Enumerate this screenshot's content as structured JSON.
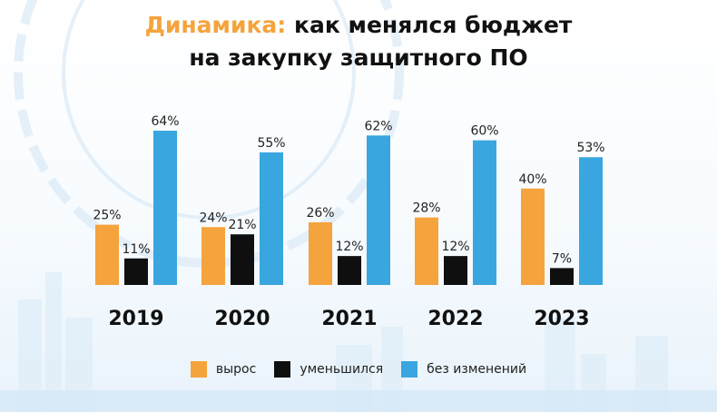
{
  "title": {
    "accent": "Динамика:",
    "line1_rest": "как менялся бюджет",
    "line2": "на закупку защитного ПО"
  },
  "colors": {
    "growth": "#f5a33d",
    "decrease": "#0f0f0f",
    "unchanged": "#3aa6e0",
    "title_accent": "#f5a33d"
  },
  "chart_data": {
    "type": "bar",
    "categories": [
      "2019",
      "2020",
      "2021",
      "2022",
      "2023"
    ],
    "series": [
      {
        "name": "вырос",
        "values": [
          25,
          24,
          26,
          28,
          40
        ],
        "color": "#f5a33d"
      },
      {
        "name": "уменьшился",
        "values": [
          11,
          21,
          12,
          12,
          7
        ],
        "color": "#0f0f0f"
      },
      {
        "name": "без изменений",
        "values": [
          64,
          55,
          62,
          60,
          53
        ],
        "color": "#3aa6e0"
      }
    ],
    "value_suffix": "%",
    "ylim": [
      0,
      64
    ],
    "grid": false,
    "legend_position": "bottom"
  }
}
